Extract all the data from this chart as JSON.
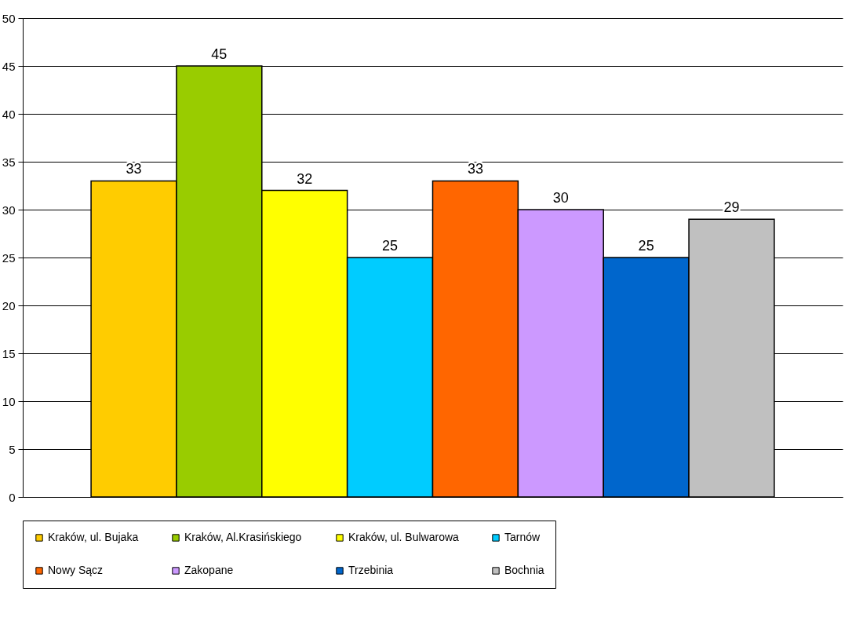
{
  "chart_data": {
    "type": "bar",
    "categories": [
      null
    ],
    "series": [
      {
        "name": "Kraków, ul. Bujaka",
        "color": "#ffcc00",
        "values": [
          33
        ]
      },
      {
        "name": "Kraków, Al.Krasińskiego",
        "color": "#99cc00",
        "values": [
          45
        ]
      },
      {
        "name": "Kraków, ul. Bulwarowa",
        "color": "#ffff00",
        "values": [
          32
        ]
      },
      {
        "name": "Tarnów",
        "color": "#00ccff",
        "values": [
          25
        ]
      },
      {
        "name": "Nowy Sącz",
        "color": "#ff6600",
        "values": [
          33
        ]
      },
      {
        "name": "Zakopane",
        "color": "#cc99ff",
        "values": [
          30
        ]
      },
      {
        "name": "Trzebinia",
        "color": "#0066cc",
        "values": [
          25
        ]
      },
      {
        "name": "Bochnia",
        "color": "#c0c0c0",
        "values": [
          29
        ]
      }
    ],
    "ylim": [
      0,
      50
    ],
    "yticks": [
      0,
      5,
      10,
      15,
      20,
      25,
      30,
      35,
      40,
      45,
      50
    ],
    "grid": "y",
    "legend": "bottom",
    "data_labels": true,
    "tick_labels": "y"
  }
}
